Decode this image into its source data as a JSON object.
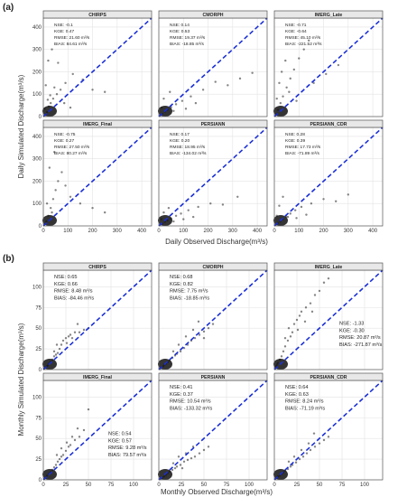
{
  "figure": {
    "a": {
      "label": "(a)",
      "xlabel": "Daily Observed Discharge(m³/s)",
      "ylabel": "Daily Simulated Discharge(m³/s)",
      "xticks": [
        "0",
        "100",
        "200",
        "300",
        "400"
      ],
      "yticks": [
        "0",
        "100",
        "200",
        "300",
        "400"
      ]
    },
    "b": {
      "label": "(b)",
      "xlabel": "Monthly Observed Discharge(m³/s)",
      "ylabel": "Monthly Simulated Discharge(m³/s)",
      "xticks": [
        "0",
        "25",
        "50",
        "75",
        "100"
      ],
      "yticks": [
        "0",
        "25",
        "50",
        "75",
        "100"
      ]
    }
  },
  "chart_data": [
    {
      "type": "scatter",
      "group": "a",
      "title": "CHIRPS",
      "xlim": [
        0,
        440
      ],
      "ylim": [
        0,
        440
      ],
      "stats": [
        "NSE: -0.1",
        "KGE: 0.47",
        "RMSE: 21.60 m³/s",
        "BIAS: 84.61 m³/s"
      ],
      "points": [
        [
          8,
          6
        ],
        [
          15,
          20
        ],
        [
          22,
          45
        ],
        [
          30,
          60
        ],
        [
          40,
          80
        ],
        [
          55,
          100
        ],
        [
          70,
          120
        ],
        [
          90,
          150
        ],
        [
          120,
          190
        ],
        [
          160,
          165
        ],
        [
          200,
          120
        ],
        [
          250,
          110
        ],
        [
          20,
          250
        ],
        [
          35,
          300
        ],
        [
          60,
          240
        ],
        [
          10,
          140
        ],
        [
          45,
          130
        ],
        [
          85,
          60
        ],
        [
          110,
          40
        ],
        [
          5,
          35
        ],
        [
          18,
          75
        ],
        [
          28,
          95
        ]
      ],
      "reference_line": [
        [
          0,
          0
        ],
        [
          440,
          440
        ]
      ]
    },
    {
      "type": "scatter",
      "group": "a",
      "title": "CMORPH",
      "xlim": [
        0,
        440
      ],
      "ylim": [
        0,
        440
      ],
      "stats": [
        "NSE: 0.14",
        "KGE: 0.53",
        "RMSE: 19.37 m³/s",
        "BIAS: -18.85 m³/s"
      ],
      "points": [
        [
          6,
          5
        ],
        [
          14,
          12
        ],
        [
          25,
          22
        ],
        [
          35,
          30
        ],
        [
          50,
          42
        ],
        [
          70,
          55
        ],
        [
          95,
          70
        ],
        [
          130,
          90
        ],
        [
          180,
          120
        ],
        [
          230,
          155
        ],
        [
          280,
          140
        ],
        [
          330,
          170
        ],
        [
          380,
          195
        ],
        [
          20,
          80
        ],
        [
          45,
          110
        ],
        [
          60,
          25
        ],
        [
          110,
          35
        ],
        [
          150,
          60
        ],
        [
          12,
          40
        ]
      ],
      "reference_line": [
        [
          0,
          0
        ],
        [
          440,
          440
        ]
      ]
    },
    {
      "type": "scatter",
      "group": "a",
      "title": "IMERG_Late",
      "xlim": [
        0,
        440
      ],
      "ylim": [
        0,
        440
      ],
      "stats": [
        "NSE: -0.71",
        "KGE: -0.64",
        "RMSE: 45.10 m³/s",
        "BIAS: -221.52 m³/s"
      ],
      "points": [
        [
          8,
          10
        ],
        [
          15,
          30
        ],
        [
          25,
          60
        ],
        [
          35,
          90
        ],
        [
          50,
          130
        ],
        [
          65,
          170
        ],
        [
          80,
          210
        ],
        [
          100,
          260
        ],
        [
          120,
          300
        ],
        [
          140,
          340
        ],
        [
          30,
          200
        ],
        [
          45,
          250
        ],
        [
          20,
          150
        ],
        [
          60,
          110
        ],
        [
          90,
          70
        ],
        [
          10,
          80
        ],
        [
          160,
          150
        ],
        [
          210,
          190
        ],
        [
          260,
          230
        ]
      ],
      "reference_line": [
        [
          0,
          0
        ],
        [
          440,
          440
        ]
      ]
    },
    {
      "type": "scatter",
      "group": "a",
      "title": "IMERG_Final",
      "xlim": [
        0,
        440
      ],
      "ylim": [
        0,
        440
      ],
      "stats": [
        "NSE: -0.75",
        "KGE: 0.27",
        "RMSE: 27.50 m³/s",
        "BIAS: 80.27 m³/s"
      ],
      "points": [
        [
          6,
          8
        ],
        [
          12,
          20
        ],
        [
          20,
          45
        ],
        [
          30,
          80
        ],
        [
          40,
          120
        ],
        [
          50,
          160
        ],
        [
          60,
          200
        ],
        [
          75,
          240
        ],
        [
          90,
          180
        ],
        [
          110,
          130
        ],
        [
          150,
          100
        ],
        [
          200,
          80
        ],
        [
          250,
          60
        ],
        [
          25,
          260
        ],
        [
          45,
          330
        ],
        [
          15,
          100
        ],
        [
          35,
          60
        ]
      ],
      "reference_line": [
        [
          0,
          0
        ],
        [
          440,
          440
        ]
      ]
    },
    {
      "type": "scatter",
      "group": "a",
      "title": "PERSIANN",
      "xlim": [
        0,
        440
      ],
      "ylim": [
        0,
        440
      ],
      "stats": [
        "NSE: 0.17",
        "KGE: 0.20",
        "RMSE: 18.95 m³/s",
        "BIAS: -134.02 m³/s"
      ],
      "points": [
        [
          6,
          5
        ],
        [
          15,
          10
        ],
        [
          25,
          18
        ],
        [
          35,
          25
        ],
        [
          50,
          33
        ],
        [
          70,
          45
        ],
        [
          90,
          55
        ],
        [
          120,
          70
        ],
        [
          160,
          85
        ],
        [
          210,
          100
        ],
        [
          260,
          95
        ],
        [
          320,
          130
        ],
        [
          20,
          60
        ],
        [
          40,
          80
        ],
        [
          60,
          20
        ],
        [
          100,
          30
        ],
        [
          140,
          40
        ],
        [
          10,
          30
        ]
      ],
      "reference_line": [
        [
          0,
          0
        ],
        [
          440,
          440
        ]
      ]
    },
    {
      "type": "scatter",
      "group": "a",
      "title": "PERSIANN_CDR",
      "xlim": [
        0,
        440
      ],
      "ylim": [
        0,
        440
      ],
      "stats": [
        "NSE: 0.28",
        "KGE: 0.39",
        "RMSE: 17.73 m³/s",
        "BIAS: -71.89 m³/s"
      ],
      "points": [
        [
          6,
          5
        ],
        [
          14,
          12
        ],
        [
          24,
          20
        ],
        [
          34,
          30
        ],
        [
          48,
          42
        ],
        [
          65,
          55
        ],
        [
          85,
          70
        ],
        [
          110,
          85
        ],
        [
          150,
          100
        ],
        [
          200,
          120
        ],
        [
          250,
          110
        ],
        [
          300,
          140
        ],
        [
          20,
          90
        ],
        [
          35,
          130
        ],
        [
          55,
          40
        ],
        [
          90,
          35
        ],
        [
          130,
          50
        ],
        [
          10,
          45
        ]
      ],
      "reference_line": [
        [
          0,
          0
        ],
        [
          440,
          440
        ]
      ]
    },
    {
      "type": "scatter",
      "group": "b",
      "title": "CHIRPS",
      "xlim": [
        0,
        120
      ],
      "ylim": [
        0,
        120
      ],
      "stats": [
        "NSE: 0.65",
        "KGE: 0.66",
        "RMSE: 8.48 m³/s",
        "BIAS: -84.46 m³/s"
      ],
      "points": [
        [
          1,
          1
        ],
        [
          2,
          2
        ],
        [
          3,
          3
        ],
        [
          4,
          4
        ],
        [
          5,
          5
        ],
        [
          6,
          7
        ],
        [
          8,
          9
        ],
        [
          10,
          12
        ],
        [
          12,
          16
        ],
        [
          14,
          18
        ],
        [
          16,
          20
        ],
        [
          18,
          25
        ],
        [
          20,
          30
        ],
        [
          22,
          35
        ],
        [
          25,
          38
        ],
        [
          28,
          40
        ],
        [
          30,
          42
        ],
        [
          35,
          45
        ],
        [
          40,
          45
        ],
        [
          45,
          48
        ],
        [
          50,
          50
        ],
        [
          15,
          30
        ],
        [
          26,
          32
        ],
        [
          32,
          38
        ],
        [
          38,
          55
        ],
        [
          12,
          22
        ]
      ],
      "reference_line": [
        [
          0,
          0
        ],
        [
          120,
          120
        ]
      ]
    },
    {
      "type": "scatter",
      "group": "b",
      "title": "CMORPH",
      "xlim": [
        0,
        120
      ],
      "ylim": [
        0,
        120
      ],
      "stats": [
        "NSE: 0.68",
        "KGE: 0.82",
        "RMSE: 7.75 m³/s",
        "BIAS: -18.85 m³/s"
      ],
      "points": [
        [
          1,
          1
        ],
        [
          2,
          2
        ],
        [
          3,
          3
        ],
        [
          5,
          4
        ],
        [
          6,
          6
        ],
        [
          8,
          7
        ],
        [
          10,
          9
        ],
        [
          12,
          11
        ],
        [
          15,
          14
        ],
        [
          18,
          17
        ],
        [
          20,
          19
        ],
        [
          24,
          22
        ],
        [
          28,
          26
        ],
        [
          32,
          30
        ],
        [
          36,
          35
        ],
        [
          40,
          38
        ],
        [
          45,
          42
        ],
        [
          50,
          46
        ],
        [
          55,
          50
        ],
        [
          60,
          55
        ],
        [
          22,
          30
        ],
        [
          30,
          40
        ],
        [
          38,
          48
        ],
        [
          44,
          58
        ],
        [
          16,
          22
        ],
        [
          50,
          38
        ]
      ],
      "reference_line": [
        [
          0,
          0
        ],
        [
          120,
          120
        ]
      ]
    },
    {
      "type": "scatter",
      "group": "b",
      "title": "IMERG_Late",
      "xlim": [
        0,
        120
      ],
      "ylim": [
        0,
        120
      ],
      "stats": [
        "NSE: -1.33",
        "KGE: -0.30",
        "RMSE: 20.87 m³/s",
        "BIAS: -271.87 m³/s"
      ],
      "points": [
        [
          1,
          2
        ],
        [
          2,
          4
        ],
        [
          3,
          6
        ],
        [
          4,
          8
        ],
        [
          6,
          12
        ],
        [
          8,
          16
        ],
        [
          10,
          22
        ],
        [
          12,
          28
        ],
        [
          15,
          35
        ],
        [
          18,
          40
        ],
        [
          20,
          45
        ],
        [
          22,
          55
        ],
        [
          25,
          60
        ],
        [
          28,
          65
        ],
        [
          30,
          70
        ],
        [
          35,
          75
        ],
        [
          40,
          80
        ],
        [
          45,
          90
        ],
        [
          50,
          95
        ],
        [
          55,
          105
        ],
        [
          60,
          110
        ],
        [
          16,
          50
        ],
        [
          26,
          48
        ],
        [
          34,
          58
        ],
        [
          42,
          70
        ],
        [
          12,
          38
        ]
      ],
      "reference_line": [
        [
          0,
          0
        ],
        [
          120,
          120
        ]
      ]
    },
    {
      "type": "scatter",
      "group": "b",
      "title": "IMERG_Final",
      "xlim": [
        0,
        120
      ],
      "ylim": [
        0,
        120
      ],
      "stats": [
        "NSE: 0.54",
        "KGE: 0.57",
        "RMSE: 9.28 m³/s",
        "BIAS: 79.57 m³/s"
      ],
      "points": [
        [
          1,
          1
        ],
        [
          2,
          2
        ],
        [
          3,
          3
        ],
        [
          4,
          5
        ],
        [
          6,
          7
        ],
        [
          8,
          9
        ],
        [
          10,
          12
        ],
        [
          12,
          15
        ],
        [
          14,
          18
        ],
        [
          16,
          22
        ],
        [
          18,
          25
        ],
        [
          20,
          28
        ],
        [
          22,
          30
        ],
        [
          25,
          35
        ],
        [
          28,
          40
        ],
        [
          30,
          42
        ],
        [
          35,
          48
        ],
        [
          40,
          52
        ],
        [
          45,
          60
        ],
        [
          50,
          85
        ],
        [
          20,
          38
        ],
        [
          26,
          45
        ],
        [
          32,
          52
        ],
        [
          15,
          30
        ],
        [
          38,
          62
        ]
      ],
      "reference_line": [
        [
          0,
          0
        ],
        [
          120,
          120
        ]
      ]
    },
    {
      "type": "scatter",
      "group": "b",
      "title": "PERSIANN",
      "xlim": [
        0,
        120
      ],
      "ylim": [
        0,
        120
      ],
      "stats": [
        "NSE: 0.41",
        "KGE: 0.37",
        "RMSE: 10.54 m³/s",
        "BIAS: -133.32 m³/s"
      ],
      "points": [
        [
          1,
          1
        ],
        [
          2,
          1
        ],
        [
          3,
          2
        ],
        [
          4,
          3
        ],
        [
          6,
          4
        ],
        [
          8,
          6
        ],
        [
          10,
          8
        ],
        [
          12,
          10
        ],
        [
          15,
          12
        ],
        [
          18,
          14
        ],
        [
          20,
          16
        ],
        [
          24,
          18
        ],
        [
          28,
          22
        ],
        [
          32,
          24
        ],
        [
          36,
          26
        ],
        [
          40,
          28
        ],
        [
          45,
          32
        ],
        [
          50,
          36
        ],
        [
          55,
          40
        ],
        [
          22,
          28
        ],
        [
          30,
          32
        ],
        [
          38,
          40
        ],
        [
          16,
          20
        ],
        [
          26,
          14
        ]
      ],
      "reference_line": [
        [
          0,
          0
        ],
        [
          120,
          120
        ]
      ]
    },
    {
      "type": "scatter",
      "group": "b",
      "title": "PERSIANN_CDR",
      "xlim": [
        0,
        120
      ],
      "ylim": [
        0,
        120
      ],
      "stats": [
        "NSE: 0.64",
        "KGE: 0.63",
        "RMSE: 8.24 m³/s",
        "BIAS: -71.19 m³/s"
      ],
      "points": [
        [
          1,
          1
        ],
        [
          2,
          2
        ],
        [
          3,
          3
        ],
        [
          4,
          4
        ],
        [
          6,
          5
        ],
        [
          8,
          7
        ],
        [
          10,
          9
        ],
        [
          12,
          11
        ],
        [
          15,
          13
        ],
        [
          18,
          16
        ],
        [
          20,
          18
        ],
        [
          24,
          21
        ],
        [
          28,
          25
        ],
        [
          32,
          28
        ],
        [
          36,
          32
        ],
        [
          40,
          36
        ],
        [
          45,
          40
        ],
        [
          50,
          44
        ],
        [
          55,
          48
        ],
        [
          60,
          52
        ],
        [
          22,
          28
        ],
        [
          30,
          36
        ],
        [
          38,
          44
        ],
        [
          16,
          22
        ],
        [
          44,
          56
        ]
      ],
      "reference_line": [
        [
          0,
          0
        ],
        [
          120,
          120
        ]
      ]
    }
  ]
}
